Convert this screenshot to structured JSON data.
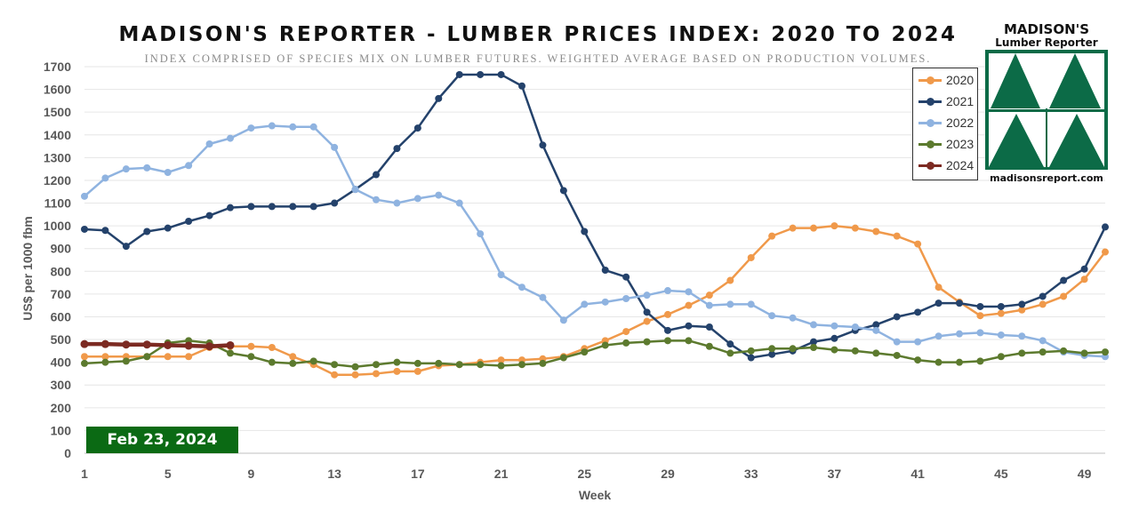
{
  "title": "MADISON'S REPORTER - LUMBER PRICES INDEX: 2020 TO 2024",
  "subtitle": "INDEX COMPRISED OF SPECIES MIX ON LUMBER FUTURES. WEIGHTED AVERAGE BASED ON PRODUCTION VOLUMES.",
  "date_badge": "Feb 23, 2024",
  "logo": {
    "name": "MADISON'S",
    "tagline": "Lumber Reporter",
    "url": "madisonsreport.com",
    "color": "#0c6b47"
  },
  "chart_data": {
    "type": "line",
    "title": "MADISON'S REPORTER - LUMBER PRICES INDEX: 2020 TO 2024",
    "subtitle": "INDEX COMPRISED OF SPECIES MIX ON LUMBER FUTURES. WEIGHTED AVERAGE BASED ON PRODUCTION VOLUMES.",
    "xlabel": "Week",
    "ylabel": "US$ per 1000 fbm",
    "xlim": [
      1,
      50
    ],
    "ylim": [
      0,
      1700
    ],
    "x_ticks": [
      1,
      5,
      9,
      13,
      17,
      21,
      25,
      29,
      33,
      37,
      41,
      45,
      49
    ],
    "y_ticks": [
      0,
      100,
      200,
      300,
      400,
      500,
      600,
      700,
      800,
      900,
      1000,
      1100,
      1200,
      1300,
      1400,
      1500,
      1600,
      1700
    ],
    "grid": "horizontal",
    "legend_position": "top-right",
    "series": [
      {
        "name": "2020",
        "color": "#f0994a",
        "values": [
          425,
          425,
          425,
          425,
          425,
          425,
          465,
          470,
          470,
          465,
          425,
          390,
          345,
          345,
          350,
          360,
          360,
          385,
          390,
          400,
          410,
          410,
          415,
          425,
          460,
          495,
          535,
          580,
          610,
          650,
          695,
          760,
          860,
          955,
          990,
          990,
          1000,
          990,
          975,
          955,
          920,
          730,
          665,
          605,
          615,
          630,
          655,
          690,
          765,
          885
        ]
      },
      {
        "name": "2021",
        "color": "#24426b",
        "values": [
          985,
          980,
          910,
          975,
          990,
          1020,
          1045,
          1080,
          1085,
          1085,
          1085,
          1085,
          1100,
          1160,
          1225,
          1340,
          1430,
          1560,
          1665,
          1665,
          1665,
          1615,
          1355,
          1155,
          975,
          805,
          775,
          620,
          540,
          560,
          555,
          480,
          420,
          435,
          450,
          490,
          505,
          540,
          565,
          600,
          620,
          660,
          660,
          645,
          645,
          655,
          690,
          760,
          810,
          995
        ]
      },
      {
        "name": "2022",
        "color": "#8fb3e0",
        "values": [
          1130,
          1210,
          1250,
          1255,
          1235,
          1265,
          1360,
          1385,
          1430,
          1440,
          1435,
          1435,
          1345,
          1160,
          1115,
          1100,
          1120,
          1135,
          1100,
          965,
          785,
          730,
          685,
          585,
          655,
          665,
          680,
          695,
          715,
          710,
          650,
          655,
          655,
          605,
          595,
          565,
          560,
          555,
          540,
          490,
          490,
          515,
          525,
          530,
          520,
          515,
          495,
          445,
          430,
          425
        ]
      },
      {
        "name": "2023",
        "color": "#5c7a2e",
        "values": [
          395,
          400,
          405,
          425,
          485,
          495,
          485,
          440,
          425,
          400,
          395,
          405,
          390,
          380,
          390,
          400,
          395,
          395,
          390,
          390,
          385,
          390,
          395,
          420,
          445,
          475,
          485,
          490,
          495,
          495,
          470,
          440,
          450,
          460,
          460,
          465,
          455,
          450,
          440,
          430,
          410,
          400,
          400,
          405,
          425,
          440,
          445,
          450,
          440,
          445
        ]
      },
      {
        "name": "2024",
        "color": "#7c2a22",
        "values": [
          480,
          480,
          478,
          478,
          475,
          473,
          470,
          475
        ]
      }
    ]
  }
}
